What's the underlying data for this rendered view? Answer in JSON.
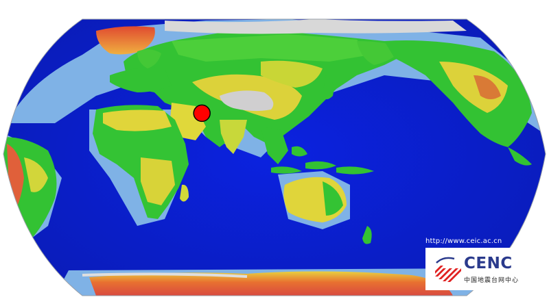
{
  "map": {
    "projection": "robinson-world-pacific-centered",
    "colors": {
      "ocean": "#0a1fd0",
      "shelf": "#7fb2e6",
      "lowland": "#2fbf2f",
      "upland": "#e3d83a",
      "highland": "#e0603a",
      "ice": "#d8d8d8",
      "epicenter": "#ff0000"
    },
    "markers": [
      {
        "name": "epicenter",
        "lat": 27.5,
        "lon": 101.5
      }
    ]
  },
  "watermark": {
    "url": "http://www.ceic.ac.cn"
  },
  "logo": {
    "name": "CENC",
    "subtitle": "中国地震台网中心",
    "colors": {
      "primary": "#2a3a8c",
      "accent": "#e02020"
    }
  }
}
